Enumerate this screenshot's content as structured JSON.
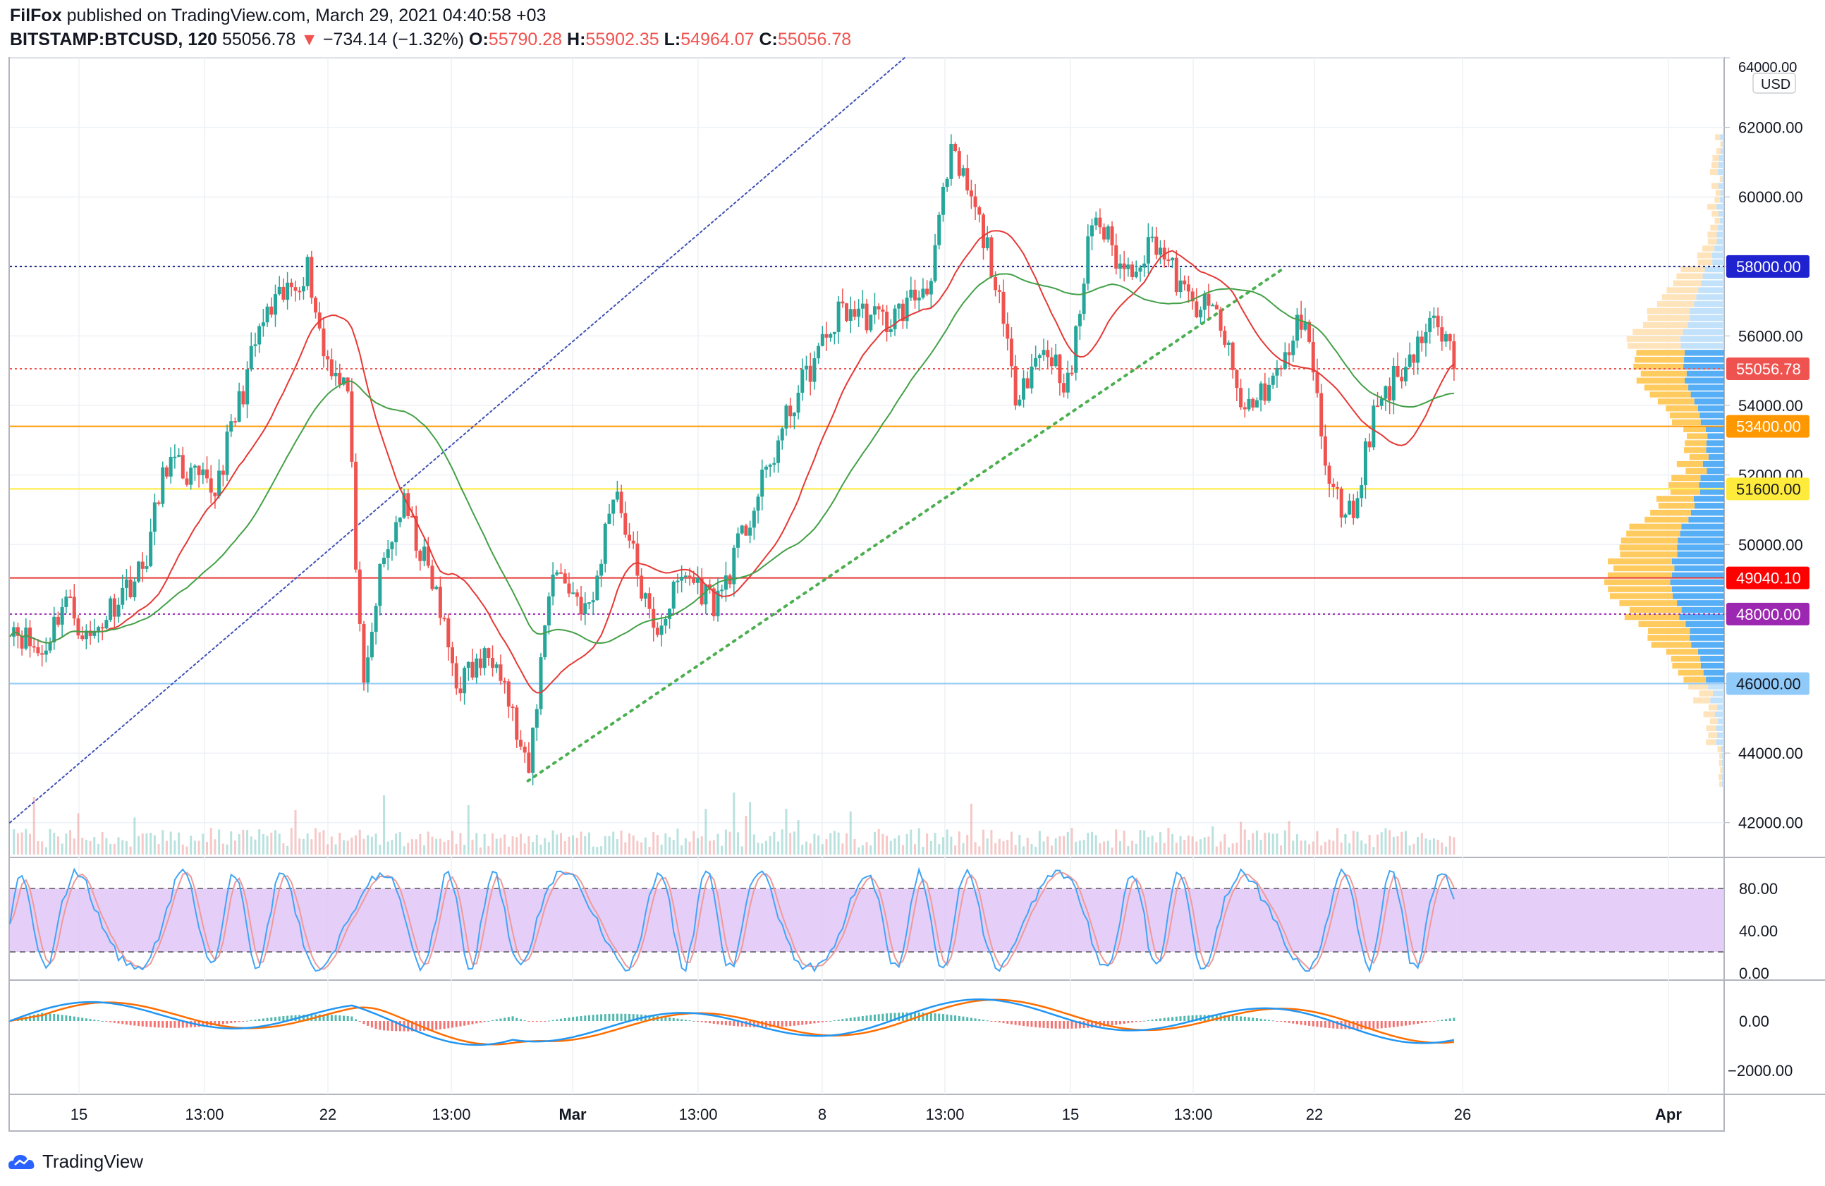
{
  "header": {
    "author": "FilFox",
    "published_text": "published on TradingView.com, March 29, 2021 04:40:58 +03",
    "symbol": "BITSTAMP:BTCUSD, 120",
    "last": "55056.78",
    "arrow": "▼",
    "change": "−734.14 (−1.32%)",
    "open_label": "O:",
    "open": "55790.28",
    "high_label": "H:",
    "high": "55902.35",
    "low_label": "L:",
    "low": "54964.07",
    "close_label": "C:",
    "close": "55056.78"
  },
  "branding": {
    "name": "TradingView"
  },
  "chart_data": {
    "type": "candlestick",
    "currency": "USD",
    "price_axis": {
      "min": 41000,
      "max": 64000,
      "ticks": [
        42000,
        44000,
        46000,
        48000,
        50000,
        52000,
        54000,
        56000,
        58000,
        60000,
        62000,
        64000
      ]
    },
    "time_axis_labels": [
      "15",
      "13:00",
      "22",
      "13:00",
      "Mar",
      "13:00",
      "8",
      "13:00",
      "15",
      "13:00",
      "22",
      "26",
      "Apr"
    ],
    "close_path": [
      {
        "t": 0,
        "p": 47800
      },
      {
        "t": 0.02,
        "p": 46800
      },
      {
        "t": 0.035,
        "p": 48500
      },
      {
        "t": 0.05,
        "p": 47200
      },
      {
        "t": 0.07,
        "p": 48600
      },
      {
        "t": 0.085,
        "p": 49300
      },
      {
        "t": 0.1,
        "p": 52400
      },
      {
        "t": 0.13,
        "p": 51500
      },
      {
        "t": 0.16,
        "p": 56300
      },
      {
        "t": 0.19,
        "p": 58000
      },
      {
        "t": 0.2,
        "p": 55500
      },
      {
        "t": 0.215,
        "p": 54600
      },
      {
        "t": 0.225,
        "p": 45400
      },
      {
        "t": 0.235,
        "p": 49000
      },
      {
        "t": 0.25,
        "p": 51200
      },
      {
        "t": 0.27,
        "p": 48800
      },
      {
        "t": 0.285,
        "p": 46000
      },
      {
        "t": 0.31,
        "p": 47000
      },
      {
        "t": 0.33,
        "p": 43200
      },
      {
        "t": 0.345,
        "p": 49400
      },
      {
        "t": 0.37,
        "p": 48000
      },
      {
        "t": 0.385,
        "p": 51800
      },
      {
        "t": 0.41,
        "p": 47400
      },
      {
        "t": 0.43,
        "p": 49200
      },
      {
        "t": 0.45,
        "p": 48300
      },
      {
        "t": 0.47,
        "p": 50600
      },
      {
        "t": 0.5,
        "p": 54200
      },
      {
        "t": 0.53,
        "p": 56800
      },
      {
        "t": 0.56,
        "p": 56400
      },
      {
        "t": 0.585,
        "p": 57500
      },
      {
        "t": 0.6,
        "p": 61200
      },
      {
        "t": 0.61,
        "p": 60200
      },
      {
        "t": 0.625,
        "p": 58200
      },
      {
        "t": 0.64,
        "p": 54400
      },
      {
        "t": 0.66,
        "p": 55700
      },
      {
        "t": 0.675,
        "p": 54500
      },
      {
        "t": 0.69,
        "p": 59600
      },
      {
        "t": 0.71,
        "p": 57800
      },
      {
        "t": 0.73,
        "p": 58800
      },
      {
        "t": 0.75,
        "p": 57000
      },
      {
        "t": 0.77,
        "p": 56600
      },
      {
        "t": 0.785,
        "p": 53800
      },
      {
        "t": 0.81,
        "p": 55000
      },
      {
        "t": 0.825,
        "p": 56800
      },
      {
        "t": 0.84,
        "p": 51600
      },
      {
        "t": 0.855,
        "p": 50800
      },
      {
        "t": 0.87,
        "p": 54000
      },
      {
        "t": 0.89,
        "p": 55300
      },
      {
        "t": 0.905,
        "p": 56400
      },
      {
        "t": 0.915,
        "p": 55790
      },
      {
        "t": 0.92,
        "p": 55057
      }
    ],
    "moving_averages": [
      {
        "name": "MA fast",
        "color": "#e53935"
      },
      {
        "name": "MA slow",
        "color": "#43a047"
      }
    ],
    "horizontal_levels": [
      {
        "price": 58000.0,
        "label": "58000.00",
        "line_color": "#1a237e",
        "label_bg": "#1e22cf",
        "style": "dotted"
      },
      {
        "price": 55056.78,
        "label": "55056.78",
        "line_color": "#ef5350",
        "label_bg": "#ef5350",
        "style": "dotted"
      },
      {
        "price": 53400.0,
        "label": "53400.00",
        "line_color": "#ff9800",
        "label_bg": "#ff9800",
        "style": "solid"
      },
      {
        "price": 51600.0,
        "label": "51600.00",
        "line_color": "#ffeb3b",
        "label_bg": "#ffeb3b",
        "style": "solid"
      },
      {
        "price": 49040.1,
        "label": "49040.10",
        "line_color": "#e53935",
        "label_bg": "#ff0000",
        "style": "solid"
      },
      {
        "price": 48000.0,
        "label": "48000.00",
        "line_color": "#9c27b0",
        "label_bg": "#9c27b0",
        "style": "dotted"
      },
      {
        "price": 46000.0,
        "label": "46000.00",
        "line_color": "#90caf9",
        "label_bg": "#90caf9",
        "style": "solid"
      }
    ],
    "trend_lines": [
      {
        "name": "blue dotted channel line",
        "from": {
          "t": 0,
          "p": 42000
        },
        "to": {
          "t": 0.57,
          "p": 64000
        },
        "color": "#3f51b5"
      },
      {
        "name": "green dotted support line",
        "from": {
          "t": 0.33,
          "p": 43200
        },
        "to": {
          "t": 0.81,
          "p": 57900
        },
        "color": "#4caf50"
      }
    ],
    "stochastic": {
      "axis_ticks": [
        "80.00",
        "40.00",
        "0.00"
      ],
      "band": [
        20,
        80
      ]
    },
    "macd": {
      "axis_ticks": [
        "0.00",
        "−2000.00"
      ]
    }
  }
}
